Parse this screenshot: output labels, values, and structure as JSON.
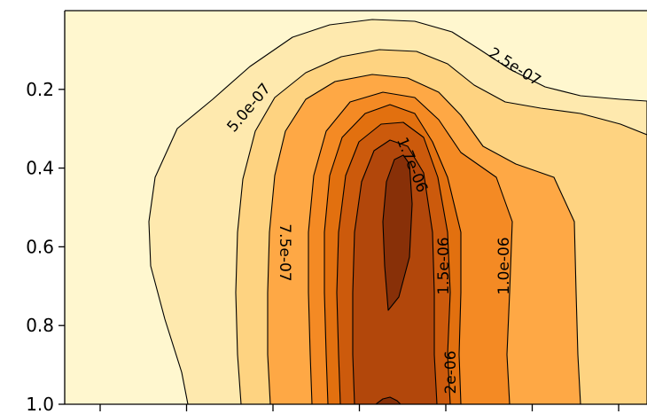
{
  "chart_data": {
    "type": "contour",
    "title": "",
    "xlabel": "",
    "ylabel": "",
    "y_axis": {
      "inverted": true,
      "range": [
        0.0,
        1.0
      ],
      "ticks": [
        0.2,
        0.4,
        0.6,
        0.8,
        1.0
      ],
      "tick_labels": [
        "0.2",
        "0.4",
        "0.6",
        "0.8",
        "1.0"
      ]
    },
    "x_axis": {
      "tick_count": 7,
      "tick_labels": []
    },
    "contour_levels": [
      {
        "level": 2.5e-07,
        "label": "2.5e-07",
        "color": "#fee9ae"
      },
      {
        "level": 5e-07,
        "label": "5.0e-07",
        "color": "#fed381"
      },
      {
        "level": 7.5e-07,
        "label": "7.5e-07",
        "color": "#fea845"
      },
      {
        "level": 1e-06,
        "label": "1.0e-06",
        "color": "#f48a24"
      },
      {
        "level": 1.25e-06,
        "label": "",
        "color": "#e2700f"
      },
      {
        "level": 1.5e-06,
        "label": "1.5e-06",
        "color": "#cc5a0c"
      },
      {
        "level": 1.7e-06,
        "label": "1.7e-06",
        "color": "#b2470b"
      },
      {
        "level": 2e-06,
        "label": "2e-06",
        "color": "#883008"
      }
    ],
    "background_color": "#fff7cf"
  }
}
